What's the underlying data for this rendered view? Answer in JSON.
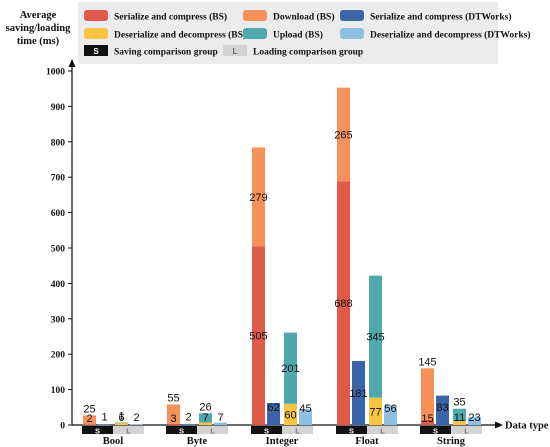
{
  "chart_data": {
    "type": "bar",
    "ylabel": "Average saving/loading time (ms)",
    "xlabel": "Data type",
    "ylim": [
      0,
      1000
    ],
    "yticks": [
      0,
      100,
      200,
      300,
      400,
      500,
      600,
      700,
      800,
      900,
      1000
    ],
    "grid": false,
    "legend_position": "top",
    "categories": [
      "Bool",
      "Byte",
      "Integer",
      "Float",
      "String"
    ],
    "legend": [
      {
        "name": "Serialize and compress (BS)",
        "color": "#e05a4a"
      },
      {
        "name": "Download (BS)",
        "color": "#f6915a"
      },
      {
        "name": "Serialize and compress (DTWorks)",
        "color": "#3c64a8"
      },
      {
        "name": "Deserialize and decompress (BS)",
        "color": "#f7c540"
      },
      {
        "name": "Upload (BS)",
        "color": "#4fa8ae"
      },
      {
        "name": "Deserialize and decompress (DTWorks)",
        "color": "#8fbfe2"
      }
    ],
    "groups": [
      {
        "key": "S",
        "name": "Saving comparison group",
        "color": "#111111"
      },
      {
        "key": "L",
        "name": "Loading comparison group",
        "color": "#d3d3d3"
      }
    ],
    "bars": {
      "Bool": {
        "saving_bs": {
          "serialize": 2,
          "download": 25
        },
        "saving_dtworks": 1,
        "loading_bs": {
          "deserialize": 6,
          "upload": 1
        },
        "loading_dtworks": 2
      },
      "Byte": {
        "saving_bs": {
          "serialize": 3,
          "download": 55
        },
        "saving_dtworks": 2,
        "loading_bs": {
          "deserialize": 7,
          "upload": 26
        },
        "loading_dtworks": 7
      },
      "Integer": {
        "saving_bs": {
          "serialize": 505,
          "download": 279
        },
        "saving_dtworks": 62,
        "loading_bs": {
          "deserialize": 60,
          "upload": 201
        },
        "loading_dtworks": 45
      },
      "Float": {
        "saving_bs": {
          "serialize": 688,
          "download": 265
        },
        "saving_dtworks": 181,
        "loading_bs": {
          "deserialize": 77,
          "upload": 345
        },
        "loading_dtworks": 56
      },
      "String": {
        "saving_bs": {
          "serialize": 15,
          "download": 145
        },
        "saving_dtworks": 83,
        "loading_bs": {
          "deserialize": 11,
          "upload": 35
        },
        "loading_dtworks": 23
      }
    }
  }
}
